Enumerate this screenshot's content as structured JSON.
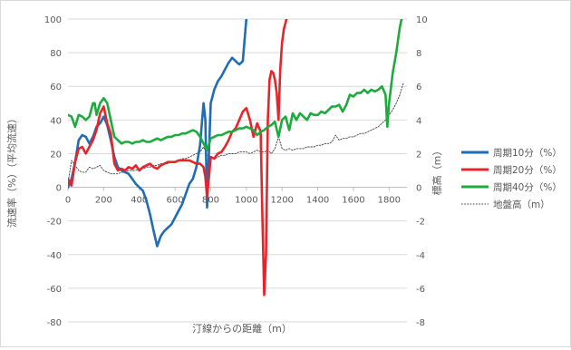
{
  "chart_data": {
    "type": "line",
    "title": "",
    "xlabel": "汀線からの距離（m）",
    "ylabel": "流速率（%）（平均流速）",
    "y2label": "標高（m）",
    "xlim": [
      0,
      1900
    ],
    "ylim": [
      -80,
      100
    ],
    "y2lim": [
      -8,
      10
    ],
    "x_ticks": [
      "0",
      "200",
      "400",
      "600",
      "800",
      "1000",
      "1200",
      "1400",
      "1600",
      "1800"
    ],
    "y_ticks": [
      "-80",
      "-60",
      "-40",
      "-20",
      "0",
      "20",
      "40",
      "60",
      "80",
      "100"
    ],
    "y2_ticks": [
      "-8",
      "-6",
      "-4",
      "-2",
      "0",
      "2",
      "4",
      "6",
      "8",
      "10"
    ],
    "grid": "horizontal",
    "legend_position": "right",
    "series": [
      {
        "name": "周期10分（%）",
        "color": "#1f6db3",
        "axis": "left",
        "points": [
          [
            0,
            0
          ],
          [
            20,
            5
          ],
          [
            40,
            15
          ],
          [
            60,
            28
          ],
          [
            80,
            31
          ],
          [
            100,
            30
          ],
          [
            120,
            26
          ],
          [
            140,
            30
          ],
          [
            160,
            36
          ],
          [
            180,
            38
          ],
          [
            200,
            42
          ],
          [
            220,
            37
          ],
          [
            240,
            28
          ],
          [
            260,
            18
          ],
          [
            280,
            12
          ],
          [
            300,
            10
          ],
          [
            320,
            9
          ],
          [
            340,
            8
          ],
          [
            360,
            5
          ],
          [
            380,
            2
          ],
          [
            400,
            0
          ],
          [
            420,
            -2
          ],
          [
            440,
            -8
          ],
          [
            460,
            -16
          ],
          [
            480,
            -26
          ],
          [
            500,
            -35
          ],
          [
            520,
            -29
          ],
          [
            540,
            -26
          ],
          [
            560,
            -24
          ],
          [
            580,
            -22
          ],
          [
            600,
            -18
          ],
          [
            620,
            -14
          ],
          [
            640,
            -10
          ],
          [
            660,
            -4
          ],
          [
            680,
            2
          ],
          [
            700,
            5
          ],
          [
            720,
            12
          ],
          [
            740,
            25
          ],
          [
            760,
            50
          ],
          [
            770,
            40
          ],
          [
            780,
            -12
          ],
          [
            790,
            20
          ],
          [
            800,
            50
          ],
          [
            820,
            58
          ],
          [
            840,
            63
          ],
          [
            860,
            66
          ],
          [
            880,
            70
          ],
          [
            900,
            74
          ],
          [
            920,
            77
          ],
          [
            940,
            75
          ],
          [
            960,
            73
          ],
          [
            980,
            75
          ],
          [
            1000,
            100
          ]
        ]
      },
      {
        "name": "周期20分（%）",
        "color": "#e8242b",
        "axis": "left",
        "points": [
          [
            0,
            5
          ],
          [
            20,
            1
          ],
          [
            40,
            15
          ],
          [
            60,
            23
          ],
          [
            80,
            24
          ],
          [
            100,
            20
          ],
          [
            120,
            24
          ],
          [
            140,
            28
          ],
          [
            160,
            34
          ],
          [
            180,
            44
          ],
          [
            200,
            48
          ],
          [
            220,
            38
          ],
          [
            240,
            32
          ],
          [
            260,
            14
          ],
          [
            280,
            10
          ],
          [
            300,
            11
          ],
          [
            320,
            10
          ],
          [
            340,
            12
          ],
          [
            360,
            11
          ],
          [
            380,
            13
          ],
          [
            400,
            10
          ],
          [
            420,
            12
          ],
          [
            440,
            13
          ],
          [
            460,
            14
          ],
          [
            480,
            12
          ],
          [
            500,
            11
          ],
          [
            520,
            13
          ],
          [
            540,
            14
          ],
          [
            560,
            15
          ],
          [
            580,
            15
          ],
          [
            600,
            15
          ],
          [
            620,
            16
          ],
          [
            640,
            16
          ],
          [
            660,
            16
          ],
          [
            680,
            16
          ],
          [
            700,
            15
          ],
          [
            720,
            14
          ],
          [
            740,
            14
          ],
          [
            760,
            12
          ],
          [
            770,
            6
          ],
          [
            780,
            -6
          ],
          [
            800,
            18
          ],
          [
            820,
            17
          ],
          [
            840,
            20
          ],
          [
            860,
            21
          ],
          [
            880,
            24
          ],
          [
            900,
            28
          ],
          [
            920,
            33
          ],
          [
            940,
            35
          ],
          [
            960,
            40
          ],
          [
            980,
            45
          ],
          [
            1000,
            47
          ],
          [
            1020,
            40
          ],
          [
            1040,
            30
          ],
          [
            1060,
            38
          ],
          [
            1080,
            33
          ],
          [
            1090,
            -20
          ],
          [
            1100,
            -64
          ],
          [
            1110,
            -40
          ],
          [
            1120,
            40
          ],
          [
            1130,
            64
          ],
          [
            1140,
            69
          ],
          [
            1150,
            68
          ],
          [
            1160,
            64
          ],
          [
            1170,
            56
          ],
          [
            1180,
            40
          ],
          [
            1190,
            70
          ],
          [
            1200,
            86
          ],
          [
            1210,
            94
          ],
          [
            1225,
            100
          ]
        ]
      },
      {
        "name": "周期40分（%）",
        "color": "#1eab3e",
        "axis": "left",
        "points": [
          [
            0,
            43
          ],
          [
            20,
            42
          ],
          [
            40,
            36
          ],
          [
            60,
            43
          ],
          [
            80,
            42
          ],
          [
            100,
            40
          ],
          [
            120,
            42
          ],
          [
            140,
            50
          ],
          [
            150,
            50
          ],
          [
            160,
            43
          ],
          [
            180,
            50
          ],
          [
            200,
            53
          ],
          [
            220,
            50
          ],
          [
            240,
            40
          ],
          [
            260,
            30
          ],
          [
            280,
            28
          ],
          [
            300,
            26
          ],
          [
            320,
            27
          ],
          [
            340,
            27
          ],
          [
            360,
            26
          ],
          [
            380,
            27
          ],
          [
            400,
            27
          ],
          [
            420,
            28
          ],
          [
            440,
            27
          ],
          [
            460,
            27
          ],
          [
            480,
            28
          ],
          [
            500,
            29
          ],
          [
            520,
            28
          ],
          [
            540,
            29
          ],
          [
            560,
            30
          ],
          [
            580,
            30
          ],
          [
            600,
            31
          ],
          [
            620,
            31
          ],
          [
            640,
            32
          ],
          [
            660,
            32
          ],
          [
            680,
            33
          ],
          [
            700,
            34
          ],
          [
            720,
            33
          ],
          [
            740,
            30
          ],
          [
            760,
            26
          ],
          [
            780,
            22
          ],
          [
            800,
            29
          ],
          [
            820,
            30
          ],
          [
            840,
            31
          ],
          [
            860,
            31
          ],
          [
            880,
            32
          ],
          [
            900,
            33
          ],
          [
            920,
            33
          ],
          [
            940,
            34
          ],
          [
            960,
            35
          ],
          [
            980,
            35
          ],
          [
            1000,
            36
          ],
          [
            1020,
            35
          ],
          [
            1040,
            34
          ],
          [
            1060,
            31
          ],
          [
            1080,
            33
          ],
          [
            1100,
            34
          ],
          [
            1120,
            36
          ],
          [
            1140,
            37
          ],
          [
            1160,
            39
          ],
          [
            1180,
            30
          ],
          [
            1200,
            40
          ],
          [
            1220,
            42
          ],
          [
            1240,
            34
          ],
          [
            1260,
            44
          ],
          [
            1280,
            40
          ],
          [
            1300,
            44
          ],
          [
            1320,
            42
          ],
          [
            1340,
            40
          ],
          [
            1360,
            44
          ],
          [
            1380,
            43
          ],
          [
            1400,
            43
          ],
          [
            1420,
            45
          ],
          [
            1440,
            44
          ],
          [
            1460,
            46
          ],
          [
            1480,
            48
          ],
          [
            1500,
            48
          ],
          [
            1520,
            49
          ],
          [
            1540,
            45
          ],
          [
            1560,
            49
          ],
          [
            1580,
            55
          ],
          [
            1600,
            54
          ],
          [
            1620,
            56
          ],
          [
            1640,
            56
          ],
          [
            1660,
            58
          ],
          [
            1680,
            56
          ],
          [
            1700,
            58
          ],
          [
            1720,
            57
          ],
          [
            1740,
            58
          ],
          [
            1760,
            60
          ],
          [
            1780,
            55
          ],
          [
            1790,
            36
          ],
          [
            1800,
            50
          ],
          [
            1820,
            68
          ],
          [
            1840,
            80
          ],
          [
            1860,
            95
          ],
          [
            1870,
            100
          ]
        ]
      },
      {
        "name": "地盤高（m）",
        "color": "#404040",
        "axis": "right",
        "dashed": true,
        "points": [
          [
            0,
            0.2
          ],
          [
            20,
            1.6
          ],
          [
            40,
            1.3
          ],
          [
            60,
            1.0
          ],
          [
            80,
            0.9
          ],
          [
            100,
            0.9
          ],
          [
            120,
            1.2
          ],
          [
            140,
            1.1
          ],
          [
            160,
            1.2
          ],
          [
            180,
            1.3
          ],
          [
            200,
            1.0
          ],
          [
            220,
            0.9
          ],
          [
            240,
            0.8
          ],
          [
            260,
            0.8
          ],
          [
            280,
            0.8
          ],
          [
            300,
            0.9
          ],
          [
            320,
            0.9
          ],
          [
            340,
            1.0
          ],
          [
            360,
            1.0
          ],
          [
            380,
            1.0
          ],
          [
            400,
            1.1
          ],
          [
            420,
            1.1
          ],
          [
            440,
            1.2
          ],
          [
            460,
            1.2
          ],
          [
            480,
            1.3
          ],
          [
            500,
            1.3
          ],
          [
            520,
            1.4
          ],
          [
            540,
            1.4
          ],
          [
            560,
            1.4
          ],
          [
            580,
            1.5
          ],
          [
            600,
            1.5
          ],
          [
            620,
            1.6
          ],
          [
            640,
            1.7
          ],
          [
            660,
            1.7
          ],
          [
            680,
            1.8
          ],
          [
            700,
            1.9
          ],
          [
            720,
            2.0
          ],
          [
            740,
            2.1
          ],
          [
            760,
            2.4
          ],
          [
            780,
            1.9
          ],
          [
            800,
            1.8
          ],
          [
            820,
            1.7
          ],
          [
            840,
            1.8
          ],
          [
            860,
            1.9
          ],
          [
            880,
            1.9
          ],
          [
            900,
            2.0
          ],
          [
            920,
            2.0
          ],
          [
            940,
            2.0
          ],
          [
            960,
            2.1
          ],
          [
            980,
            2.1
          ],
          [
            1000,
            2.1
          ],
          [
            1020,
            2.0
          ],
          [
            1040,
            2.1
          ],
          [
            1060,
            2.2
          ],
          [
            1080,
            2.1
          ],
          [
            1100,
            2.1
          ],
          [
            1120,
            2.2
          ],
          [
            1140,
            2.0
          ],
          [
            1160,
            2.3
          ],
          [
            1180,
            3.0
          ],
          [
            1200,
            2.3
          ],
          [
            1220,
            2.2
          ],
          [
            1240,
            2.3
          ],
          [
            1260,
            2.2
          ],
          [
            1280,
            2.3
          ],
          [
            1300,
            2.3
          ],
          [
            1320,
            2.3
          ],
          [
            1340,
            2.4
          ],
          [
            1360,
            2.4
          ],
          [
            1380,
            2.4
          ],
          [
            1400,
            2.5
          ],
          [
            1420,
            2.5
          ],
          [
            1440,
            2.6
          ],
          [
            1460,
            2.6
          ],
          [
            1480,
            2.7
          ],
          [
            1500,
            3.1
          ],
          [
            1520,
            2.8
          ],
          [
            1540,
            2.9
          ],
          [
            1560,
            2.9
          ],
          [
            1580,
            3.0
          ],
          [
            1600,
            3.0
          ],
          [
            1620,
            3.1
          ],
          [
            1640,
            3.2
          ],
          [
            1660,
            3.2
          ],
          [
            1680,
            3.3
          ],
          [
            1700,
            3.4
          ],
          [
            1720,
            3.5
          ],
          [
            1740,
            3.6
          ],
          [
            1760,
            3.8
          ],
          [
            1780,
            4.0
          ],
          [
            1800,
            4.3
          ],
          [
            1820,
            4.6
          ],
          [
            1840,
            5.0
          ],
          [
            1860,
            5.5
          ],
          [
            1880,
            6.2
          ]
        ]
      }
    ]
  }
}
